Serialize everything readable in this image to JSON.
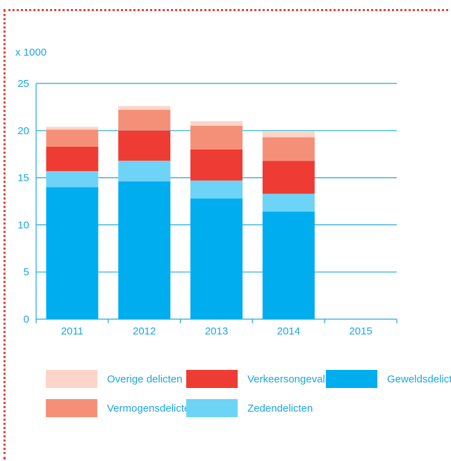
{
  "chart_data": {
    "type": "bar",
    "stacked": true,
    "unit_label": "x 1000",
    "categories": [
      "2011",
      "2012",
      "2013",
      "2014",
      "2015"
    ],
    "ylim": [
      0,
      25
    ],
    "yticks": [
      "0",
      "5",
      "10",
      "15",
      "20",
      "25"
    ],
    "grid": true,
    "legend_position": "bottom",
    "series": [
      {
        "name": "Geweldsdelicten",
        "color": "#00adef",
        "values": [
          14.0,
          14.6,
          12.8,
          11.4,
          null
        ]
      },
      {
        "name": "Zedendelicten",
        "color": "#6dd3f7",
        "values": [
          1.7,
          2.2,
          1.9,
          1.9,
          null
        ]
      },
      {
        "name": "Verkeersongevallen",
        "color": "#ee3b33",
        "values": [
          2.6,
          3.2,
          3.3,
          3.5,
          null
        ]
      },
      {
        "name": "Vermogensdelicten",
        "color": "#f59078",
        "values": [
          1.8,
          2.2,
          2.5,
          2.5,
          null
        ]
      },
      {
        "name": "Overige delicten",
        "color": "#fdd5c8",
        "values": [
          0.3,
          0.4,
          0.5,
          0.6,
          null
        ]
      }
    ]
  },
  "colors": {
    "axis": "#1aa7e0",
    "frame": "#e8413a"
  }
}
